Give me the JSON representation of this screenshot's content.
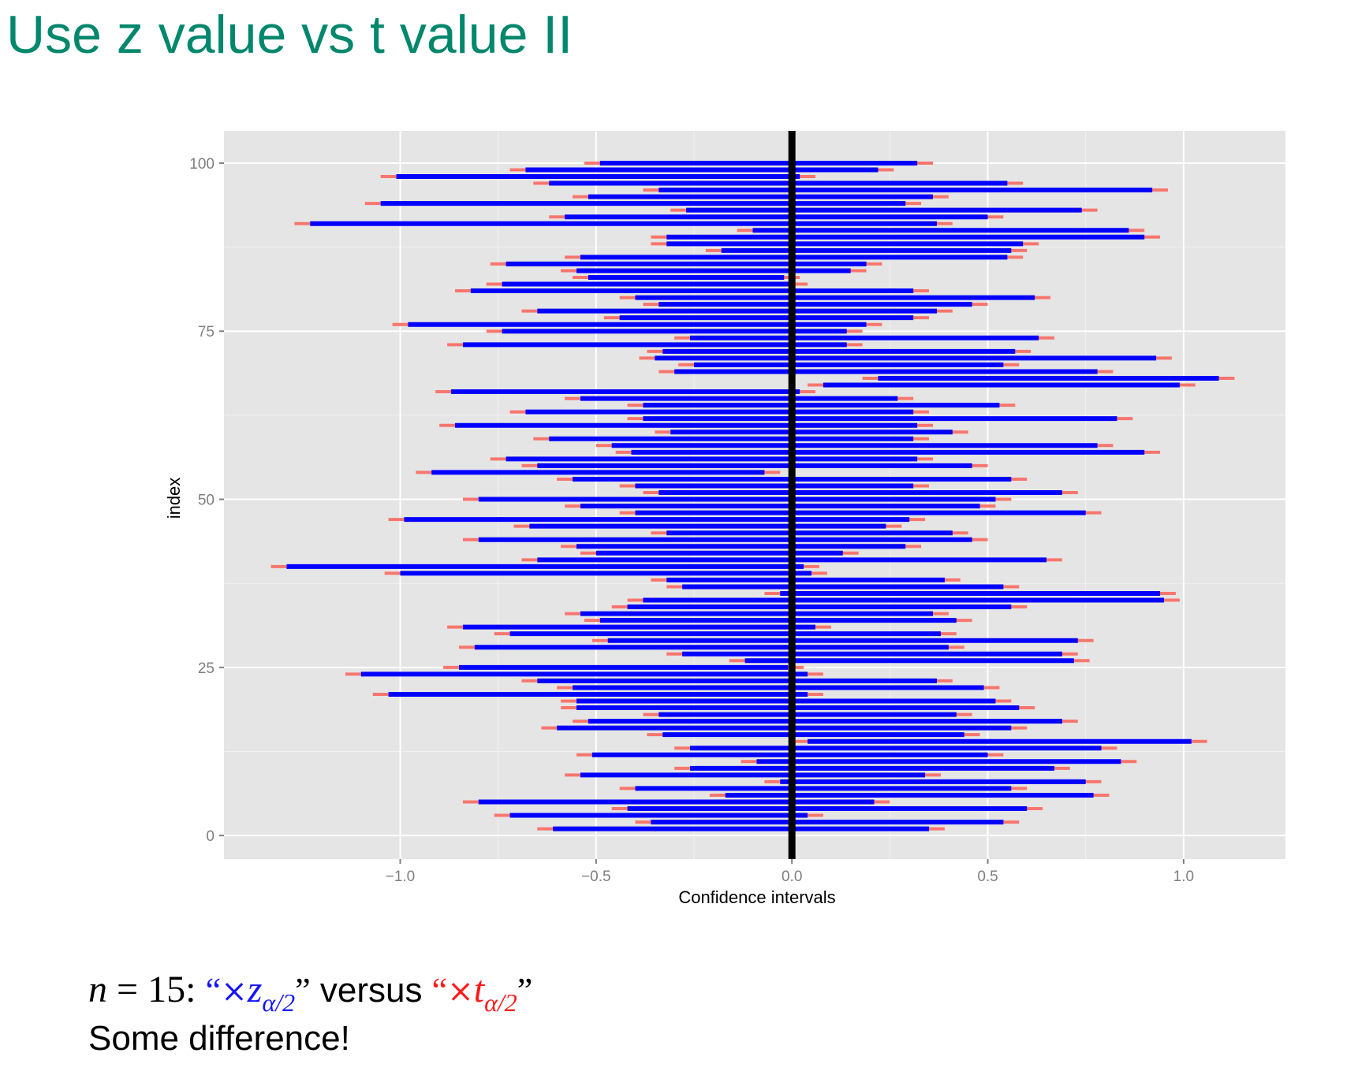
{
  "slide": {
    "title": "Use z value vs t value II",
    "caption": {
      "n_symbol": "n",
      "equals": "=",
      "n_value": "15:",
      "open_quote": "“",
      "close_quote": "”",
      "times": "×",
      "z_var": "z",
      "t_var": "t",
      "subscript": "α/2",
      "versus": "versus",
      "conclusion": "Some difference!"
    }
  },
  "colors": {
    "panel": "#e5e5e5",
    "grid": "#ffffff",
    "z_interval": "#0000ff",
    "t_interval": "#f8766d",
    "reference_line": "#000000",
    "title": "#00876c",
    "tick_text": "#7f7f7f"
  },
  "chart_data": {
    "type": "interval",
    "xlabel": "Confidence intervals",
    "ylabel": "index",
    "xlim": [
      -1.45,
      1.26
    ],
    "ylim": [
      -3.5,
      104.8
    ],
    "x_ticks": [
      -1.0,
      -0.5,
      0.0,
      0.5,
      1.0
    ],
    "x_tick_labels": [
      "−1.0",
      "−0.5",
      "0.0",
      "0.5",
      "1.0"
    ],
    "y_ticks": [
      0,
      25,
      50,
      75,
      100
    ],
    "y_tick_labels": [
      "0",
      "25",
      "50",
      "75",
      "100"
    ],
    "reference_x": 0,
    "grid": true,
    "series": [
      {
        "name": "×z_{α/2}",
        "kind": "z"
      },
      {
        "name": "×t_{α/2}",
        "kind": "t"
      }
    ],
    "intervals": [
      {
        "index": 1,
        "z": [
          -0.61,
          0.35
        ],
        "t": [
          -0.65,
          0.39
        ]
      },
      {
        "index": 2,
        "z": [
          -0.36,
          0.54
        ],
        "t": [
          -0.4,
          0.58
        ]
      },
      {
        "index": 3,
        "z": [
          -0.72,
          0.04
        ],
        "t": [
          -0.76,
          0.08
        ]
      },
      {
        "index": 4,
        "z": [
          -0.42,
          0.6
        ],
        "t": [
          -0.46,
          0.64
        ]
      },
      {
        "index": 5,
        "z": [
          -0.8,
          0.21
        ],
        "t": [
          -0.84,
          0.25
        ]
      },
      {
        "index": 6,
        "z": [
          -0.17,
          0.77
        ],
        "t": [
          -0.21,
          0.81
        ]
      },
      {
        "index": 7,
        "z": [
          -0.4,
          0.56
        ],
        "t": [
          -0.44,
          0.6
        ]
      },
      {
        "index": 8,
        "z": [
          -0.03,
          0.75
        ],
        "t": [
          -0.07,
          0.79
        ]
      },
      {
        "index": 9,
        "z": [
          -0.54,
          0.34
        ],
        "t": [
          -0.58,
          0.38
        ]
      },
      {
        "index": 10,
        "z": [
          -0.26,
          0.67
        ],
        "t": [
          -0.3,
          0.71
        ]
      },
      {
        "index": 11,
        "z": [
          -0.09,
          0.84
        ],
        "t": [
          -0.13,
          0.88
        ]
      },
      {
        "index": 12,
        "z": [
          -0.51,
          0.5
        ],
        "t": [
          -0.55,
          0.54
        ]
      },
      {
        "index": 13,
        "z": [
          -0.26,
          0.79
        ],
        "t": [
          -0.3,
          0.83
        ]
      },
      {
        "index": 14,
        "z": [
          0.04,
          1.02
        ],
        "t": [
          0.0,
          1.06
        ]
      },
      {
        "index": 15,
        "z": [
          -0.33,
          0.44
        ],
        "t": [
          -0.37,
          0.48
        ]
      },
      {
        "index": 16,
        "z": [
          -0.6,
          0.56
        ],
        "t": [
          -0.64,
          0.6
        ]
      },
      {
        "index": 17,
        "z": [
          -0.52,
          0.69
        ],
        "t": [
          -0.56,
          0.73
        ]
      },
      {
        "index": 18,
        "z": [
          -0.34,
          0.42
        ],
        "t": [
          -0.38,
          0.46
        ]
      },
      {
        "index": 19,
        "z": [
          -0.55,
          0.58
        ],
        "t": [
          -0.59,
          0.62
        ]
      },
      {
        "index": 20,
        "z": [
          -0.55,
          0.52
        ],
        "t": [
          -0.59,
          0.56
        ]
      },
      {
        "index": 21,
        "z": [
          -1.03,
          0.04
        ],
        "t": [
          -1.07,
          0.08
        ]
      },
      {
        "index": 22,
        "z": [
          -0.56,
          0.49
        ],
        "t": [
          -0.6,
          0.53
        ]
      },
      {
        "index": 23,
        "z": [
          -0.65,
          0.37
        ],
        "t": [
          -0.69,
          0.41
        ]
      },
      {
        "index": 24,
        "z": [
          -1.1,
          0.04
        ],
        "t": [
          -1.14,
          0.08
        ]
      },
      {
        "index": 25,
        "z": [
          -0.85,
          -0.01
        ],
        "t": [
          -0.89,
          0.03
        ]
      },
      {
        "index": 26,
        "z": [
          -0.12,
          0.72
        ],
        "t": [
          -0.16,
          0.76
        ]
      },
      {
        "index": 27,
        "z": [
          -0.28,
          0.69
        ],
        "t": [
          -0.32,
          0.73
        ]
      },
      {
        "index": 28,
        "z": [
          -0.81,
          0.4
        ],
        "t": [
          -0.85,
          0.44
        ]
      },
      {
        "index": 29,
        "z": [
          -0.47,
          0.73
        ],
        "t": [
          -0.51,
          0.77
        ]
      },
      {
        "index": 30,
        "z": [
          -0.72,
          0.38
        ],
        "t": [
          -0.76,
          0.42
        ]
      },
      {
        "index": 31,
        "z": [
          -0.84,
          0.06
        ],
        "t": [
          -0.88,
          0.1
        ]
      },
      {
        "index": 32,
        "z": [
          -0.49,
          0.42
        ],
        "t": [
          -0.53,
          0.46
        ]
      },
      {
        "index": 33,
        "z": [
          -0.54,
          0.36
        ],
        "t": [
          -0.58,
          0.4
        ]
      },
      {
        "index": 34,
        "z": [
          -0.42,
          0.56
        ],
        "t": [
          -0.46,
          0.6
        ]
      },
      {
        "index": 35,
        "z": [
          -0.38,
          0.95
        ],
        "t": [
          -0.42,
          0.99
        ]
      },
      {
        "index": 36,
        "z": [
          -0.03,
          0.94
        ],
        "t": [
          -0.07,
          0.98
        ]
      },
      {
        "index": 37,
        "z": [
          -0.28,
          0.54
        ],
        "t": [
          -0.32,
          0.58
        ]
      },
      {
        "index": 38,
        "z": [
          -0.32,
          0.39
        ],
        "t": [
          -0.36,
          0.43
        ]
      },
      {
        "index": 39,
        "z": [
          -1.0,
          0.05
        ],
        "t": [
          -1.04,
          0.09
        ]
      },
      {
        "index": 40,
        "z": [
          -1.29,
          0.03
        ],
        "t": [
          -1.33,
          0.07
        ]
      },
      {
        "index": 41,
        "z": [
          -0.65,
          0.65
        ],
        "t": [
          -0.69,
          0.69
        ]
      },
      {
        "index": 42,
        "z": [
          -0.5,
          0.13
        ],
        "t": [
          -0.54,
          0.17
        ]
      },
      {
        "index": 43,
        "z": [
          -0.55,
          0.29
        ],
        "t": [
          -0.59,
          0.33
        ]
      },
      {
        "index": 44,
        "z": [
          -0.8,
          0.46
        ],
        "t": [
          -0.84,
          0.5
        ]
      },
      {
        "index": 45,
        "z": [
          -0.32,
          0.41
        ],
        "t": [
          -0.36,
          0.45
        ]
      },
      {
        "index": 46,
        "z": [
          -0.67,
          0.24
        ],
        "t": [
          -0.71,
          0.28
        ]
      },
      {
        "index": 47,
        "z": [
          -0.99,
          0.3
        ],
        "t": [
          -1.03,
          0.34
        ]
      },
      {
        "index": 48,
        "z": [
          -0.4,
          0.75
        ],
        "t": [
          -0.44,
          0.79
        ]
      },
      {
        "index": 49,
        "z": [
          -0.54,
          0.48
        ],
        "t": [
          -0.58,
          0.52
        ]
      },
      {
        "index": 50,
        "z": [
          -0.8,
          0.52
        ],
        "t": [
          -0.84,
          0.56
        ]
      },
      {
        "index": 51,
        "z": [
          -0.34,
          0.69
        ],
        "t": [
          -0.38,
          0.73
        ]
      },
      {
        "index": 52,
        "z": [
          -0.4,
          0.31
        ],
        "t": [
          -0.44,
          0.35
        ]
      },
      {
        "index": 53,
        "z": [
          -0.56,
          0.56
        ],
        "t": [
          -0.6,
          0.6
        ]
      },
      {
        "index": 54,
        "z": [
          -0.92,
          -0.07
        ],
        "t": [
          -0.96,
          -0.03
        ]
      },
      {
        "index": 55,
        "z": [
          -0.65,
          0.46
        ],
        "t": [
          -0.69,
          0.5
        ]
      },
      {
        "index": 56,
        "z": [
          -0.73,
          0.32
        ],
        "t": [
          -0.77,
          0.36
        ]
      },
      {
        "index": 57,
        "z": [
          -0.41,
          0.9
        ],
        "t": [
          -0.45,
          0.94
        ]
      },
      {
        "index": 58,
        "z": [
          -0.46,
          0.78
        ],
        "t": [
          -0.5,
          0.82
        ]
      },
      {
        "index": 59,
        "z": [
          -0.62,
          0.31
        ],
        "t": [
          -0.66,
          0.35
        ]
      },
      {
        "index": 60,
        "z": [
          -0.31,
          0.41
        ],
        "t": [
          -0.35,
          0.45
        ]
      },
      {
        "index": 61,
        "z": [
          -0.86,
          0.32
        ],
        "t": [
          -0.9,
          0.36
        ]
      },
      {
        "index": 62,
        "z": [
          -0.38,
          0.83
        ],
        "t": [
          -0.42,
          0.87
        ]
      },
      {
        "index": 63,
        "z": [
          -0.68,
          0.31
        ],
        "t": [
          -0.72,
          0.35
        ]
      },
      {
        "index": 64,
        "z": [
          -0.38,
          0.53
        ],
        "t": [
          -0.42,
          0.57
        ]
      },
      {
        "index": 65,
        "z": [
          -0.54,
          0.27
        ],
        "t": [
          -0.58,
          0.31
        ]
      },
      {
        "index": 66,
        "z": [
          -0.87,
          0.02
        ],
        "t": [
          -0.91,
          0.06
        ]
      },
      {
        "index": 67,
        "z": [
          0.08,
          0.99
        ],
        "t": [
          0.04,
          1.03
        ]
      },
      {
        "index": 68,
        "z": [
          0.22,
          1.09
        ],
        "t": [
          0.18,
          1.13
        ]
      },
      {
        "index": 69,
        "z": [
          -0.3,
          0.78
        ],
        "t": [
          -0.34,
          0.82
        ]
      },
      {
        "index": 70,
        "z": [
          -0.25,
          0.54
        ],
        "t": [
          -0.29,
          0.58
        ]
      },
      {
        "index": 71,
        "z": [
          -0.35,
          0.93
        ],
        "t": [
          -0.39,
          0.97
        ]
      },
      {
        "index": 72,
        "z": [
          -0.33,
          0.57
        ],
        "t": [
          -0.37,
          0.61
        ]
      },
      {
        "index": 73,
        "z": [
          -0.84,
          0.14
        ],
        "t": [
          -0.88,
          0.18
        ]
      },
      {
        "index": 74,
        "z": [
          -0.26,
          0.63
        ],
        "t": [
          -0.3,
          0.67
        ]
      },
      {
        "index": 75,
        "z": [
          -0.74,
          0.14
        ],
        "t": [
          -0.78,
          0.18
        ]
      },
      {
        "index": 76,
        "z": [
          -0.98,
          0.19
        ],
        "t": [
          -1.02,
          0.23
        ]
      },
      {
        "index": 77,
        "z": [
          -0.44,
          0.31
        ],
        "t": [
          -0.48,
          0.35
        ]
      },
      {
        "index": 78,
        "z": [
          -0.65,
          0.37
        ],
        "t": [
          -0.69,
          0.41
        ]
      },
      {
        "index": 79,
        "z": [
          -0.34,
          0.46
        ],
        "t": [
          -0.38,
          0.5
        ]
      },
      {
        "index": 80,
        "z": [
          -0.4,
          0.62
        ],
        "t": [
          -0.44,
          0.66
        ]
      },
      {
        "index": 81,
        "z": [
          -0.82,
          0.31
        ],
        "t": [
          -0.86,
          0.35
        ]
      },
      {
        "index": 82,
        "z": [
          -0.74,
          0.0
        ],
        "t": [
          -0.78,
          0.04
        ]
      },
      {
        "index": 83,
        "z": [
          -0.52,
          -0.02
        ],
        "t": [
          -0.56,
          0.02
        ]
      },
      {
        "index": 84,
        "z": [
          -0.55,
          0.15
        ],
        "t": [
          -0.59,
          0.19
        ]
      },
      {
        "index": 85,
        "z": [
          -0.73,
          0.19
        ],
        "t": [
          -0.77,
          0.23
        ]
      },
      {
        "index": 86,
        "z": [
          -0.54,
          0.55
        ],
        "t": [
          -0.58,
          0.59
        ]
      },
      {
        "index": 87,
        "z": [
          -0.18,
          0.56
        ],
        "t": [
          -0.22,
          0.6
        ]
      },
      {
        "index": 88,
        "z": [
          -0.32,
          0.59
        ],
        "t": [
          -0.36,
          0.63
        ]
      },
      {
        "index": 89,
        "z": [
          -0.32,
          0.9
        ],
        "t": [
          -0.36,
          0.94
        ]
      },
      {
        "index": 90,
        "z": [
          -0.1,
          0.86
        ],
        "t": [
          -0.14,
          0.9
        ]
      },
      {
        "index": 91,
        "z": [
          -1.23,
          0.37
        ],
        "t": [
          -1.27,
          0.41
        ]
      },
      {
        "index": 92,
        "z": [
          -0.58,
          0.5
        ],
        "t": [
          -0.62,
          0.54
        ]
      },
      {
        "index": 93,
        "z": [
          -0.27,
          0.74
        ],
        "t": [
          -0.31,
          0.78
        ]
      },
      {
        "index": 94,
        "z": [
          -1.05,
          0.29
        ],
        "t": [
          -1.09,
          0.33
        ]
      },
      {
        "index": 95,
        "z": [
          -0.52,
          0.36
        ],
        "t": [
          -0.56,
          0.4
        ]
      },
      {
        "index": 96,
        "z": [
          -0.34,
          0.92
        ],
        "t": [
          -0.38,
          0.96
        ]
      },
      {
        "index": 97,
        "z": [
          -0.62,
          0.55
        ],
        "t": [
          -0.66,
          0.59
        ]
      },
      {
        "index": 98,
        "z": [
          -1.01,
          0.02
        ],
        "t": [
          -1.05,
          0.06
        ]
      },
      {
        "index": 99,
        "z": [
          -0.68,
          0.22
        ],
        "t": [
          -0.72,
          0.26
        ]
      },
      {
        "index": 100,
        "z": [
          -0.49,
          0.32
        ],
        "t": [
          -0.53,
          0.36
        ]
      }
    ]
  }
}
